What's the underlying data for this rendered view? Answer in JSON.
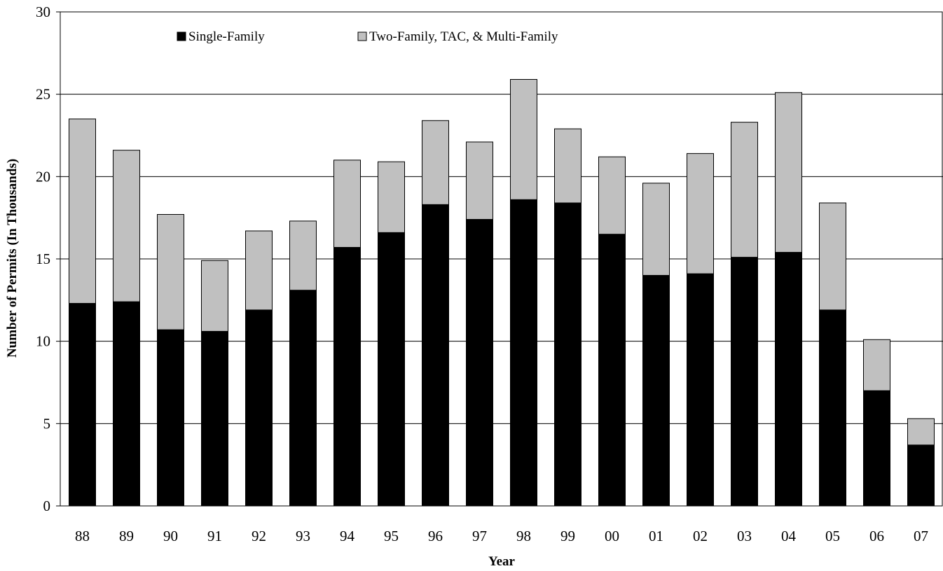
{
  "chart_data": {
    "type": "bar",
    "stacked": true,
    "title": "",
    "xlabel": "Year",
    "ylabel": "Number of Permits (In Thousands)",
    "ylim": [
      0,
      30
    ],
    "yticks": [
      0,
      5,
      10,
      15,
      20,
      25,
      30
    ],
    "grid": true,
    "legend": "top-left",
    "categories": [
      "88",
      "89",
      "90",
      "91",
      "92",
      "93",
      "94",
      "95",
      "96",
      "97",
      "98",
      "99",
      "00",
      "01",
      "02",
      "03",
      "04",
      "05",
      "06",
      "07"
    ],
    "series": [
      {
        "name": "Single-Family",
        "color": "#000000",
        "values": [
          12.3,
          12.4,
          10.7,
          10.6,
          11.9,
          13.1,
          15.7,
          16.6,
          18.3,
          17.4,
          18.6,
          18.4,
          16.5,
          14.0,
          14.1,
          15.1,
          15.4,
          11.9,
          7.0,
          3.7
        ]
      },
      {
        "name": "Two-Family, TAC, & Multi-Family",
        "color": "#c0c0c0",
        "values": [
          11.2,
          9.2,
          7.0,
          4.3,
          4.8,
          4.2,
          5.3,
          4.3,
          5.1,
          4.7,
          7.3,
          4.5,
          4.7,
          5.6,
          7.3,
          8.2,
          9.7,
          6.5,
          3.1,
          1.6
        ]
      }
    ]
  }
}
